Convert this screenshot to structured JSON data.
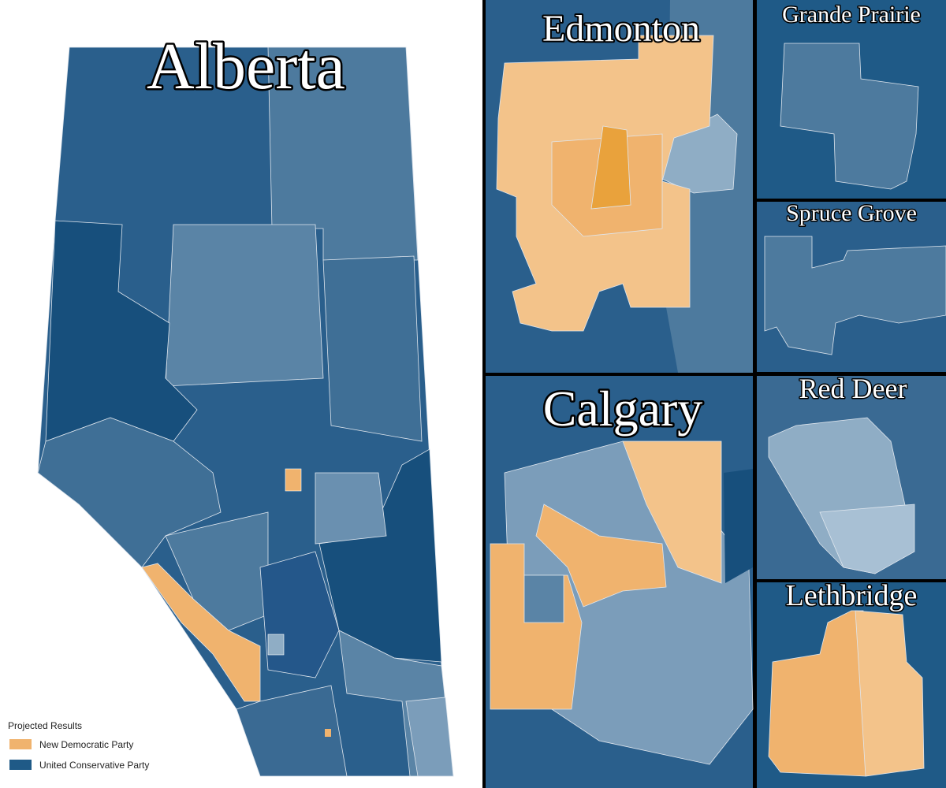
{
  "title": "Alberta",
  "insets": [
    {
      "label": "Edmonton"
    },
    {
      "label": "Grande Prairie"
    },
    {
      "label": "Spruce Grove"
    },
    {
      "label": "Calgary"
    },
    {
      "label": "Red Deer"
    },
    {
      "label": "Lethbridge"
    }
  ],
  "legend": {
    "title": "Projected Results",
    "items": [
      {
        "label": "New Democratic Party",
        "color": "#f0b36e"
      },
      {
        "label": "United Conservative Party",
        "color": "#1f5a87"
      }
    ]
  }
}
